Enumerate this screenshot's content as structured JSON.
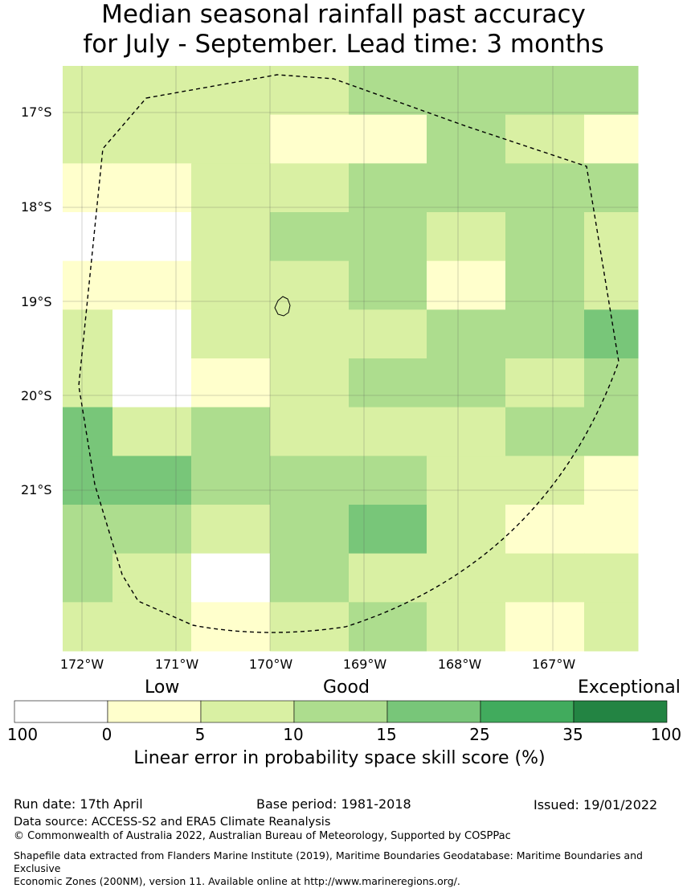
{
  "title_line1": "Median seasonal rainfall past accuracy",
  "title_line2": "for July - September. Lead time: 3 months",
  "map": {
    "lat_labels": [
      "17°S",
      "18°S",
      "19°S",
      "20°S",
      "21°S"
    ],
    "lon_labels": [
      "172°W",
      "171°W",
      "170°W",
      "169°W",
      "168°W",
      "167°W"
    ],
    "boundary_style": "dashed",
    "grid": [
      [
        2,
        2,
        2,
        2,
        3,
        3,
        3,
        3
      ],
      [
        2,
        2,
        2,
        1,
        1,
        3,
        2,
        1
      ],
      [
        1,
        1,
        2,
        2,
        3,
        3,
        3,
        3
      ],
      [
        0,
        0,
        2,
        3,
        3,
        2,
        3,
        2
      ],
      [
        1,
        1,
        2,
        2,
        3,
        1,
        3,
        2
      ],
      [
        2,
        0,
        2,
        2,
        2,
        3,
        3,
        4
      ],
      [
        2,
        0,
        1,
        2,
        3,
        3,
        2,
        3
      ],
      [
        4,
        2,
        3,
        2,
        2,
        2,
        3,
        3
      ],
      [
        4,
        4,
        3,
        3,
        3,
        2,
        2,
        1
      ],
      [
        3,
        3,
        2,
        3,
        4,
        2,
        1,
        1
      ],
      [
        3,
        2,
        0,
        3,
        2,
        2,
        2,
        2
      ],
      [
        2,
        2,
        1,
        2,
        3,
        2,
        1,
        2
      ]
    ]
  },
  "legend": {
    "categories": [
      "Low",
      "Good",
      "Exceptional"
    ],
    "colors": [
      "#ffffff",
      "#ffffcc",
      "#d9f0a3",
      "#addd8e",
      "#78c679",
      "#41ab5d",
      "#238443"
    ],
    "ticks": [
      "100",
      "0",
      "5",
      "10",
      "15",
      "25",
      "35",
      "100"
    ],
    "caption": "Linear error in probability space skill score (%)"
  },
  "footer": {
    "run_date": "Run date: 17th April",
    "base_period": "Base period: 1981-2018",
    "issued": "Issued: 19/01/2022",
    "data_source": "Data source: ACCESS-S2 and ERA5 Climate Reanalysis",
    "copyright": "© Commonwealth of Australia 2022, Australian Bureau of Meteorology, Supported by COSPPac",
    "shapefile_line1": "Shapefile data extracted from Flanders Marine Institute (2019), Maritime Boundaries Geodatabase: Maritime Boundaries and Exclusive",
    "shapefile_line2": "Economic Zones (200NM), version 11. Available online at http://www.marineregions.org/."
  }
}
